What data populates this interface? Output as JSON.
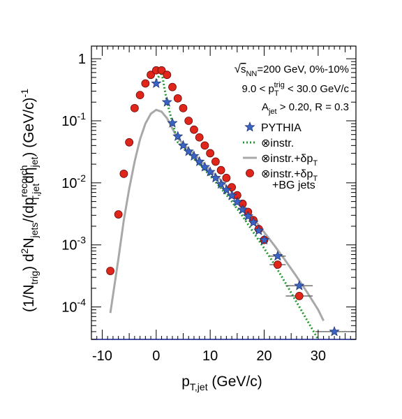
{
  "chart_data": {
    "type": "scatter",
    "title": "",
    "xlabel": "p_T,jet (GeV/c)",
    "ylabel": "(1/N_trig) d²N_jets/(dp^reco,ch_T,jet dη_jet) (GeV/c)^-1",
    "xlim": [
      -12,
      37
    ],
    "ylim": [
      3e-05,
      1.6
    ],
    "yscale": "log",
    "grid": false,
    "legend_position": "top-right",
    "x_ticks": [
      "-10",
      "0",
      "10",
      "20",
      "30"
    ],
    "annotations": [
      "√s_NN=200 GeV, 0%-10%",
      "9.0 < p_T^trig < 30.0 GeV/c",
      "A_jet > 0.20, R = 0.3"
    ],
    "series": [
      {
        "name": "PYTHIA",
        "style": "star-marker",
        "color": "#3a63c4",
        "x": [
          0,
          2,
          3,
          4,
          5,
          6,
          7,
          8,
          9,
          10,
          11,
          12,
          13,
          14,
          15,
          16,
          17,
          18,
          19,
          20,
          22.5,
          26.5,
          33
        ],
        "y": [
          0.4,
          0.2,
          0.092,
          0.056,
          0.04,
          0.032,
          0.027,
          0.022,
          0.018,
          0.015,
          0.012,
          0.0095,
          0.0077,
          0.0062,
          0.0049,
          0.0037,
          0.0029,
          0.0023,
          0.0017,
          0.0012,
          0.00066,
          0.00022,
          4e-05
        ],
        "x_err": [
          0,
          0,
          0,
          0,
          0,
          0,
          0,
          0,
          0,
          0,
          0,
          0,
          0,
          0,
          0,
          0,
          0,
          0,
          0,
          0,
          1.5,
          2.5,
          3.5
        ]
      },
      {
        "name": "⊗instr.",
        "style": "dotted-line",
        "color": "#1f9a2a",
        "x": [
          0,
          1,
          2,
          3,
          4,
          6,
          8,
          10,
          12,
          14,
          16,
          18,
          20,
          22,
          24,
          26,
          28,
          30,
          31
        ],
        "y": [
          0.45,
          0.6,
          0.2,
          0.095,
          0.045,
          0.03,
          0.02,
          0.013,
          0.0082,
          0.005,
          0.0029,
          0.0016,
          0.00088,
          0.00047,
          0.00024,
          0.00012,
          6e-05,
          3e-05,
          2e-05
        ]
      },
      {
        "name": "⊗instr.+δp_T",
        "style": "solid-line",
        "color": "#a8a8a8",
        "x": [
          -8.5,
          -7,
          -6,
          -5,
          -4,
          -3,
          -2,
          -1,
          0,
          1,
          2,
          3,
          4,
          6,
          8,
          10,
          12,
          14,
          16,
          18,
          20,
          22,
          24,
          26,
          28,
          30,
          31
        ],
        "y": [
          8e-05,
          0.0006,
          0.0025,
          0.008,
          0.022,
          0.05,
          0.09,
          0.13,
          0.15,
          0.14,
          0.11,
          0.075,
          0.052,
          0.035,
          0.024,
          0.016,
          0.011,
          0.0072,
          0.0045,
          0.0027,
          0.0016,
          0.00095,
          0.00055,
          0.00031,
          0.00017,
          9e-05,
          6e-05
        ]
      },
      {
        "name": "⊗instr.+δp_T +BG jets",
        "style": "circle-marker",
        "color": "#e0251b",
        "x": [
          -8.5,
          -7,
          -6,
          -5,
          -4,
          -3,
          -2,
          -1,
          0,
          1,
          2,
          3,
          4,
          5,
          6,
          7,
          8,
          9,
          10,
          11,
          12,
          13,
          14,
          15,
          16,
          17,
          18,
          19,
          20,
          22.5,
          26.5
        ],
        "y": [
          0.00038,
          0.0031,
          0.014,
          0.045,
          0.16,
          0.26,
          0.4,
          0.55,
          0.65,
          0.65,
          0.55,
          0.35,
          0.23,
          0.16,
          0.1,
          0.072,
          0.054,
          0.04,
          0.03,
          0.022,
          0.016,
          0.012,
          0.0085,
          0.0063,
          0.0046,
          0.0034,
          0.0025,
          0.0018,
          0.0012,
          0.00048,
          0.00015
        ],
        "x_err": [
          0,
          0,
          0,
          0,
          0,
          0,
          0,
          0,
          0,
          0,
          0,
          0,
          0,
          0,
          0,
          0,
          0,
          0,
          0,
          0,
          0,
          0,
          0,
          0,
          0,
          0,
          0,
          0,
          0,
          1.5,
          2.5
        ]
      }
    ]
  }
}
